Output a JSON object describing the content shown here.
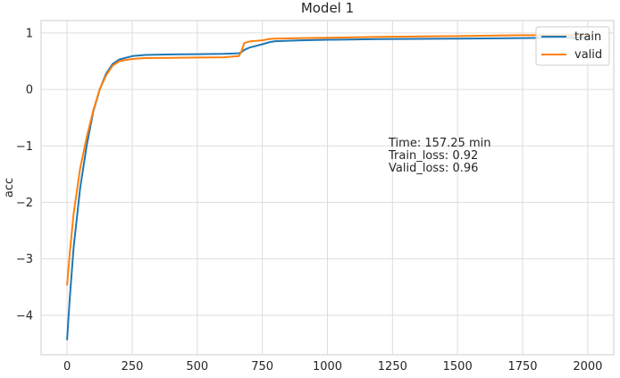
{
  "chart_data": {
    "type": "line",
    "title": "Model 1",
    "xlabel": "",
    "ylabel": "acc",
    "xlim": [
      -100,
      2100
    ],
    "ylim": [
      -4.7,
      1.22
    ],
    "xticks": [
      0,
      250,
      500,
      750,
      1000,
      1250,
      1500,
      1750,
      2000
    ],
    "yticks": [
      -4,
      -3,
      -2,
      -1,
      0,
      1
    ],
    "grid": true,
    "legend_position": "top-right",
    "annotation": [
      "Time: 157.25 min",
      "Train_loss: 0.92",
      "Valid_loss: 0.96"
    ],
    "series": [
      {
        "name": "train",
        "color": "#1f77b4",
        "x": [
          0,
          10,
          25,
          50,
          75,
          100,
          125,
          150,
          175,
          200,
          250,
          300,
          400,
          500,
          600,
          660,
          670,
          680,
          700,
          750,
          780,
          800,
          900,
          1000,
          1200,
          1500,
          1750,
          2000
        ],
        "y": [
          -4.43,
          -3.7,
          -2.8,
          -1.75,
          -1.0,
          -0.4,
          0.0,
          0.28,
          0.45,
          0.53,
          0.59,
          0.61,
          0.62,
          0.625,
          0.63,
          0.64,
          0.66,
          0.7,
          0.74,
          0.8,
          0.84,
          0.855,
          0.87,
          0.88,
          0.89,
          0.9,
          0.91,
          0.92
        ]
      },
      {
        "name": "valid",
        "color": "#ff7f0e",
        "x": [
          0,
          10,
          25,
          50,
          75,
          100,
          125,
          150,
          175,
          200,
          250,
          300,
          400,
          500,
          600,
          660,
          670,
          680,
          700,
          750,
          780,
          800,
          900,
          1000,
          1200,
          1500,
          1750,
          2000
        ],
        "y": [
          -3.46,
          -2.9,
          -2.2,
          -1.4,
          -0.85,
          -0.38,
          0.0,
          0.25,
          0.42,
          0.5,
          0.54,
          0.555,
          0.56,
          0.565,
          0.57,
          0.59,
          0.68,
          0.82,
          0.85,
          0.87,
          0.895,
          0.9,
          0.91,
          0.915,
          0.93,
          0.945,
          0.96,
          0.96
        ]
      }
    ]
  }
}
